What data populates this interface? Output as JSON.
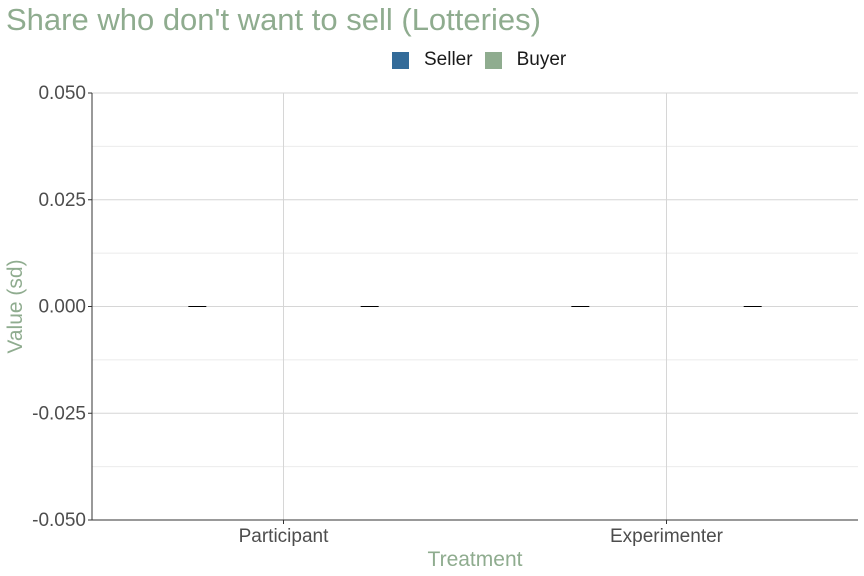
{
  "chart_data": {
    "type": "bar",
    "title": "Share who don't want to sell (Lotteries)",
    "xlabel": "Treatment",
    "ylabel": "Value (sd)",
    "categories": [
      "Participant",
      "Experimenter"
    ],
    "series": [
      {
        "name": "Seller",
        "values": [
          0.0,
          0.0
        ],
        "errors": [
          0.0,
          0.0
        ]
      },
      {
        "name": "Buyer",
        "values": [
          0.0,
          0.0
        ],
        "errors": [
          0.0,
          0.0
        ]
      }
    ],
    "ylim": [
      -0.05,
      0.05
    ],
    "yticks": [
      0.05,
      0.025,
      0.0,
      -0.025,
      -0.05
    ],
    "ytick_labels": [
      "0.050",
      "0.025",
      "0.000",
      "-0.025",
      "-0.050"
    ],
    "grid": true,
    "legend_position": "top"
  },
  "colors": {
    "seller": "#336b99",
    "buyer": "#8fac8f",
    "title": "#8fac8f",
    "axis_label": "#8fac8f",
    "grid": "#d6d6d6",
    "tick_label": "#4d4d4d"
  }
}
